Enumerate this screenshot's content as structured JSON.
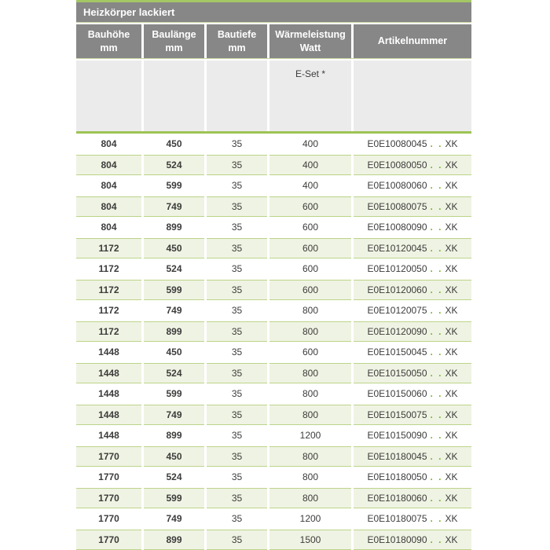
{
  "colors": {
    "accent": "#a3c765",
    "accent-strong": "#9dc355",
    "gray-header": "#878787",
    "subheader-bg": "#ebebeb",
    "row-green": "#eff3e3",
    "row-green-border": "#bcd489",
    "text-dark": "#3c3c3b",
    "dots-green": "#76b82a",
    "faint-line": "#c9d7a5"
  },
  "table": {
    "title": "Heizkörper lackiert",
    "columns": [
      {
        "line1": "Bauhöhe",
        "line2": "mm"
      },
      {
        "line1": "Baulänge",
        "line2": "mm"
      },
      {
        "line1": "Bautiefe",
        "line2": "mm"
      },
      {
        "line1": "Wärmeleistung",
        "line2": "Watt"
      },
      {
        "line1": "Artikelnummer",
        "line2": ""
      }
    ],
    "subheader_note": "E-Set *",
    "article_dots": ". .",
    "article_suffix": "XK",
    "rows": [
      {
        "bauhoehe": "804",
        "baulaenge": "450",
        "bautiefe": "35",
        "watt": "400",
        "artikel": "E0E10080045"
      },
      {
        "bauhoehe": "804",
        "baulaenge": "524",
        "bautiefe": "35",
        "watt": "400",
        "artikel": "E0E10080050"
      },
      {
        "bauhoehe": "804",
        "baulaenge": "599",
        "bautiefe": "35",
        "watt": "400",
        "artikel": "E0E10080060"
      },
      {
        "bauhoehe": "804",
        "baulaenge": "749",
        "bautiefe": "35",
        "watt": "600",
        "artikel": "E0E10080075"
      },
      {
        "bauhoehe": "804",
        "baulaenge": "899",
        "bautiefe": "35",
        "watt": "600",
        "artikel": "E0E10080090"
      },
      {
        "bauhoehe": "1172",
        "baulaenge": "450",
        "bautiefe": "35",
        "watt": "600",
        "artikel": "E0E10120045"
      },
      {
        "bauhoehe": "1172",
        "baulaenge": "524",
        "bautiefe": "35",
        "watt": "600",
        "artikel": "E0E10120050"
      },
      {
        "bauhoehe": "1172",
        "baulaenge": "599",
        "bautiefe": "35",
        "watt": "600",
        "artikel": "E0E10120060"
      },
      {
        "bauhoehe": "1172",
        "baulaenge": "749",
        "bautiefe": "35",
        "watt": "800",
        "artikel": "E0E10120075"
      },
      {
        "bauhoehe": "1172",
        "baulaenge": "899",
        "bautiefe": "35",
        "watt": "800",
        "artikel": "E0E10120090"
      },
      {
        "bauhoehe": "1448",
        "baulaenge": "450",
        "bautiefe": "35",
        "watt": "600",
        "artikel": "E0E10150045"
      },
      {
        "bauhoehe": "1448",
        "baulaenge": "524",
        "bautiefe": "35",
        "watt": "800",
        "artikel": "E0E10150050"
      },
      {
        "bauhoehe": "1448",
        "baulaenge": "599",
        "bautiefe": "35",
        "watt": "800",
        "artikel": "E0E10150060"
      },
      {
        "bauhoehe": "1448",
        "baulaenge": "749",
        "bautiefe": "35",
        "watt": "800",
        "artikel": "E0E10150075"
      },
      {
        "bauhoehe": "1448",
        "baulaenge": "899",
        "bautiefe": "35",
        "watt": "1200",
        "artikel": "E0E10150090"
      },
      {
        "bauhoehe": "1770",
        "baulaenge": "450",
        "bautiefe": "35",
        "watt": "800",
        "artikel": "E0E10180045"
      },
      {
        "bauhoehe": "1770",
        "baulaenge": "524",
        "bautiefe": "35",
        "watt": "800",
        "artikel": "E0E10180050"
      },
      {
        "bauhoehe": "1770",
        "baulaenge": "599",
        "bautiefe": "35",
        "watt": "800",
        "artikel": "E0E10180060"
      },
      {
        "bauhoehe": "1770",
        "baulaenge": "749",
        "bautiefe": "35",
        "watt": "1200",
        "artikel": "E0E10180075"
      },
      {
        "bauhoehe": "1770",
        "baulaenge": "899",
        "bautiefe": "35",
        "watt": "1500",
        "artikel": "E0E10180090"
      }
    ]
  }
}
